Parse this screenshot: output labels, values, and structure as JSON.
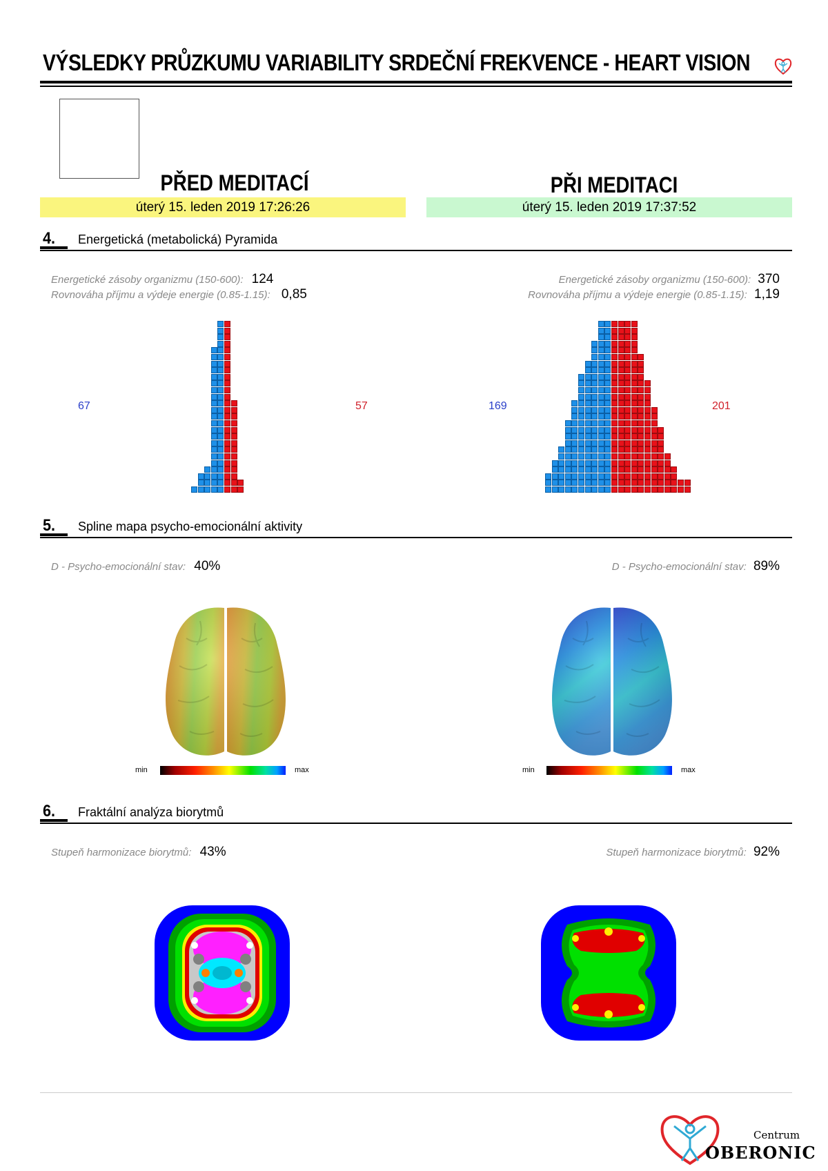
{
  "header": {
    "title": "VÝSLEDKY PRŮZKUMU VARIABILITY SRDEČNÍ FREKVENCE - HEART VISION"
  },
  "columns": {
    "before": {
      "heading": "PŘED MEDITACÍ",
      "date": "úterý 15. leden 2019 17:26:26",
      "color": "#faf57e"
    },
    "during": {
      "heading": "PŘI MEDITACI",
      "date": "úterý 15. leden 2019 17:37:52",
      "color": "#c9f8d0"
    }
  },
  "sections": {
    "pyramid": {
      "number": "4.",
      "title": "Energetická (metabolická) Pyramida",
      "reserves_label": "Energetické zásoby organizmu (150-600):",
      "balance_label": "Rovnováha příjmu a výdeje energie (0.85-1.15):",
      "before": {
        "reserves": "124",
        "balance": "0,85",
        "blue_count": "67",
        "red_count": "57"
      },
      "during": {
        "reserves": "370",
        "balance": "1,19",
        "blue_count": "169",
        "red_count": "201"
      }
    },
    "spline": {
      "number": "5.",
      "title": "Spline mapa psycho-emocionální aktivity",
      "label": "D - Psycho-emocionální stav:",
      "before_value": "40%",
      "during_value": "89%",
      "scale_min": "min",
      "scale_max": "max"
    },
    "fractal": {
      "number": "6.",
      "title": "Fraktální analýza biorytmů",
      "label": "Stupeň harmonizace biorytmů:",
      "before_value": "43%",
      "during_value": "92%"
    }
  },
  "footer": {
    "brand_small": "Centrum",
    "brand_big": "OBERONIC"
  },
  "colors": {
    "blue": "#1e90e8",
    "red": "#e8121a",
    "logo_red": "#e0262a",
    "logo_blue": "#2fa9d4"
  }
}
